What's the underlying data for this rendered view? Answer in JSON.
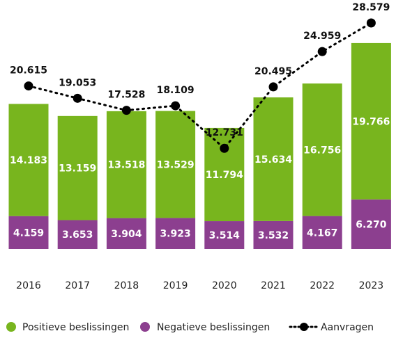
{
  "chart_data": {
    "type": "bar",
    "stacked": true,
    "categories": [
      "2016",
      "2017",
      "2018",
      "2019",
      "2020",
      "2021",
      "2022",
      "2023"
    ],
    "series": [
      {
        "name": "Negatieve beslissingen",
        "color": "#8c3f8f",
        "values": [
          4159,
          3653,
          3904,
          3923,
          3514,
          3532,
          4167,
          6270
        ],
        "value_labels": [
          "4.159",
          "3.653",
          "3.904",
          "3.923",
          "3.514",
          "3.532",
          "4.167",
          "6.270"
        ]
      },
      {
        "name": "Positieve beslissingen",
        "color": "#78b51e",
        "values": [
          14183,
          13159,
          13518,
          13529,
          11794,
          15634,
          16756,
          19766
        ],
        "value_labels": [
          "14.183",
          "13.159",
          "13.518",
          "13.529",
          "11.794",
          "15.634",
          "16.756",
          "19.766"
        ]
      },
      {
        "name": "Aanvragen",
        "type": "line",
        "color": "#000000",
        "values": [
          20615,
          19053,
          17528,
          18109,
          12731,
          20495,
          24959,
          28579
        ],
        "value_labels": [
          "20.615",
          "19.053",
          "17.528",
          "18.109",
          "12.731",
          "20.495",
          "24.959",
          "28.579"
        ]
      }
    ]
  }
}
